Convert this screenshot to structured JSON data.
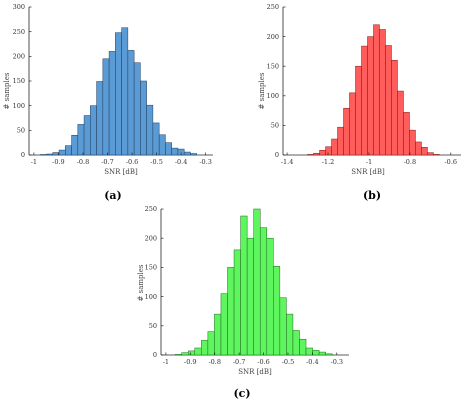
{
  "chart_data": [
    {
      "id": "a",
      "type": "bar",
      "panel_label": "(a)",
      "xlabel": "SNR [dB]",
      "ylabel": "# samples",
      "xlim": [
        -1.02,
        -0.27
      ],
      "ylim": [
        0,
        300
      ],
      "xticks": [
        -1,
        -0.9,
        -0.8,
        -0.7,
        -0.6,
        -0.5,
        -0.4,
        -0.3
      ],
      "xtick_labels": [
        "-1",
        "-0.9",
        "-0.8",
        "-0.7",
        "-0.6",
        "-0.5",
        "-0.4",
        "-0.3"
      ],
      "yticks": [
        0,
        50,
        100,
        150,
        200,
        250,
        300
      ],
      "ytick_labels": [
        "0",
        "50",
        "100",
        "150",
        "200",
        "250",
        "300"
      ],
      "color": "#5b9bd5",
      "edge_color": "#1f3d5c",
      "bin_start": -0.974,
      "bin_width": 0.0255,
      "values": [
        1,
        2,
        5,
        10,
        19,
        40,
        62,
        80,
        100,
        149,
        195,
        210,
        248,
        258,
        212,
        187,
        150,
        101,
        65,
        41,
        25,
        14,
        12,
        6,
        3
      ]
    },
    {
      "id": "b",
      "type": "bar",
      "panel_label": "(b)",
      "xlabel": "SNR [dB]",
      "ylabel": "# samples",
      "xlim": [
        -1.42,
        -0.55
      ],
      "ylim": [
        0,
        250
      ],
      "xticks": [
        -1.4,
        -1.2,
        -1.0,
        -0.8,
        -0.6
      ],
      "xtick_labels": [
        "-1.4",
        "-1.2",
        "-1",
        "-0.8",
        "-0.6"
      ],
      "yticks": [
        0,
        50,
        100,
        150,
        200,
        250
      ],
      "ytick_labels": [
        "0",
        "50",
        "100",
        "150",
        "200",
        "250"
      ],
      "color": "#ff5c5c",
      "edge_color": "#7a1e1e",
      "bin_start": -1.3,
      "bin_width": 0.0293,
      "values": [
        1,
        3,
        8,
        14,
        27,
        47,
        79,
        105,
        150,
        184,
        200,
        220,
        212,
        185,
        160,
        108,
        72,
        42,
        22,
        13,
        4,
        1
      ]
    },
    {
      "id": "c",
      "type": "bar",
      "panel_label": "(c)",
      "xlabel": "SNR [dB]",
      "ylabel": "# samples",
      "xlim": [
        -1.02,
        -0.25
      ],
      "ylim": [
        0,
        250
      ],
      "xticks": [
        -1,
        -0.9,
        -0.8,
        -0.7,
        -0.6,
        -0.5,
        -0.4,
        -0.3
      ],
      "xtick_labels": [
        "-1",
        "-0.9",
        "-0.8",
        "-0.7",
        "-0.6",
        "-0.5",
        "-0.4",
        "-0.3"
      ],
      "yticks": [
        0,
        50,
        100,
        150,
        200,
        250
      ],
      "ytick_labels": [
        "0",
        "50",
        "100",
        "150",
        "200",
        "250"
      ],
      "color": "#5ff55f",
      "edge_color": "#1e6b1e",
      "bin_start": -0.962,
      "bin_width": 0.0268,
      "values": [
        1,
        4,
        7,
        12,
        25,
        40,
        70,
        105,
        150,
        180,
        238,
        200,
        250,
        218,
        200,
        152,
        98,
        70,
        42,
        27,
        12,
        8,
        5,
        2
      ]
    }
  ]
}
